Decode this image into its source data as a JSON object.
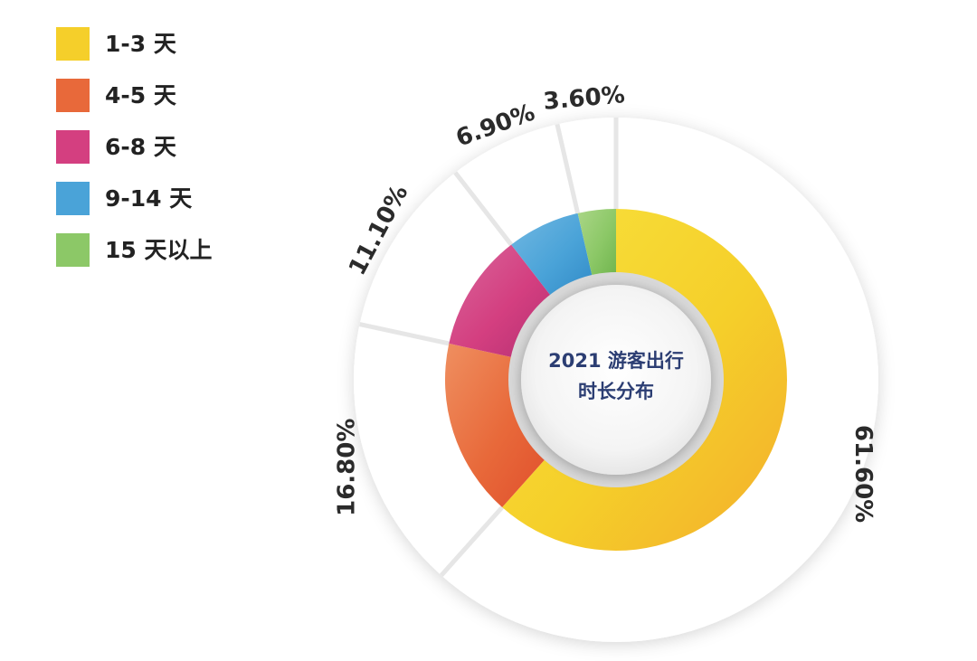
{
  "chart_data": {
    "type": "pie",
    "title": "2021 游客出行时长分布",
    "title_lines": [
      "2021 游客出行",
      "时长分布"
    ],
    "categories": [
      "1-3 天",
      "4-5 天",
      "6-8 天",
      "9-14 天",
      "15 天以上"
    ],
    "values": [
      61.6,
      16.8,
      11.1,
      6.9,
      3.6
    ],
    "value_labels": [
      "61.60%",
      "16.80%",
      "11.10%",
      "6.90%",
      "3.60%"
    ],
    "colors": [
      "#f5cf2a",
      "#e8693a",
      "#d43f80",
      "#4aa3d8",
      "#8cc867"
    ],
    "colors_light": [
      "#f8e23d",
      "#ef8f60",
      "#d8679c",
      "#72b8e2",
      "#aad687"
    ],
    "colors_dark": [
      "#f3ad2c",
      "#e04f2c",
      "#b42f72",
      "#3089c6",
      "#6fb44d"
    ],
    "legend": {
      "position": "top-left"
    },
    "style": "donut"
  }
}
